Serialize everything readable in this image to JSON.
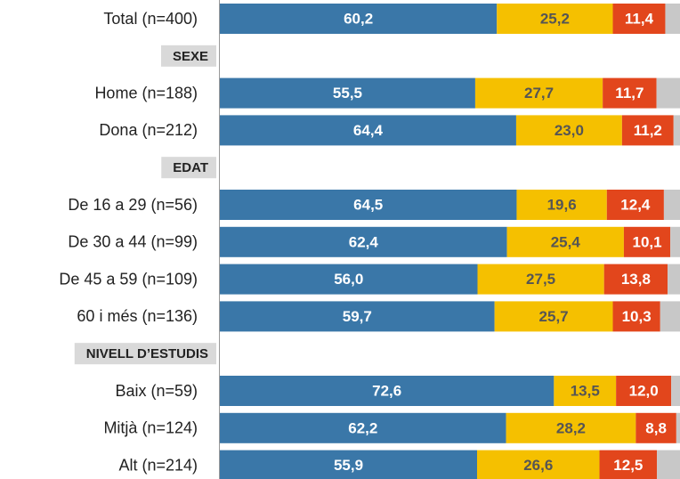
{
  "chart_data": {
    "type": "bar",
    "orientation": "horizontal",
    "stacked": true,
    "categories": [
      "Total (n=400)",
      "SEXE",
      "Home (n=188)",
      "Dona (n=212)",
      "EDAT",
      "De 16 a 29 (n=56)",
      "De 30 a 44 (n=99)",
      "De 45 a 59 (n=109)",
      "60 i més (n=136)",
      "NIVELL D’ESTUDIS",
      "Baix (n=59)",
      "Mitjà (n=124)",
      "Alt (n=214)"
    ],
    "headers": [
      false,
      true,
      false,
      false,
      true,
      false,
      false,
      false,
      false,
      true,
      false,
      false,
      false
    ],
    "xlim": [
      0,
      100
    ],
    "series": [
      {
        "color": "#3a77a8",
        "label_color": "#ffffff",
        "values": [
          60.2,
          null,
          55.5,
          64.4,
          null,
          64.5,
          62.4,
          56.0,
          59.7,
          null,
          72.6,
          62.2,
          55.9
        ],
        "value_labels": [
          "60,2",
          null,
          "55,5",
          "64,4",
          null,
          "64,5",
          "62,4",
          "56,0",
          "59,7",
          null,
          "72,6",
          "62,2",
          "55,9"
        ]
      },
      {
        "color": "#f5c000",
        "label_color": "#555555",
        "values": [
          25.2,
          null,
          27.7,
          23.0,
          null,
          19.6,
          25.4,
          27.5,
          25.7,
          null,
          13.5,
          28.2,
          26.6
        ],
        "value_labels": [
          "25,2",
          null,
          "27,7",
          "23,0",
          null,
          "19,6",
          "25,4",
          "27,5",
          "25,7",
          null,
          "13,5",
          "28,2",
          "26,6"
        ]
      },
      {
        "color": "#e2461c",
        "label_color": "#ffffff",
        "values": [
          11.4,
          null,
          11.7,
          11.2,
          null,
          12.4,
          10.1,
          13.8,
          10.3,
          null,
          12.0,
          8.8,
          12.5
        ],
        "value_labels": [
          "11,4",
          null,
          "11,7",
          "11,2",
          null,
          "12,4",
          "10,1",
          "13,8",
          "10,3",
          null,
          "12,0",
          "8,8",
          "12,5"
        ]
      },
      {
        "color": "#c8c8c8",
        "values": [
          3.2,
          null,
          5.1,
          1.4,
          null,
          3.5,
          2.1,
          2.7,
          4.3,
          null,
          1.9,
          0.8,
          5.0
        ]
      }
    ]
  }
}
